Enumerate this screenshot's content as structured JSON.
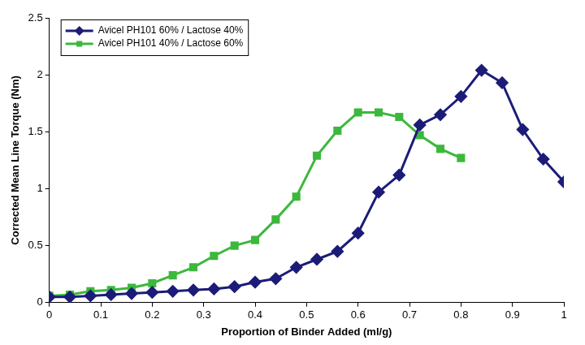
{
  "chart_data": {
    "type": "line",
    "x_label": "Proportion of Binder Added (ml/g)",
    "y_label": "Corrected Mean Line Torque (Nm)",
    "xlim": [
      0,
      1
    ],
    "xticks": [
      0,
      0.1,
      0.2,
      0.3,
      0.4,
      0.5,
      0.6,
      0.7,
      0.8,
      0.9,
      1
    ],
    "ylim": [
      0,
      2.5
    ],
    "yticks": [
      0,
      0.5,
      1,
      1.5,
      2,
      2.5
    ],
    "grid": false,
    "legend": "upper left",
    "series": [
      {
        "name": "Avicel PH101 60% / Lactose 40%",
        "color": "#1c1c78",
        "marker": "diamond",
        "x": [
          0,
          0.04,
          0.08,
          0.12,
          0.16,
          0.2,
          0.24,
          0.28,
          0.32,
          0.36,
          0.4,
          0.44,
          0.48,
          0.52,
          0.56,
          0.6,
          0.64,
          0.68,
          0.72,
          0.76,
          0.8,
          0.84,
          0.88,
          0.92,
          0.96,
          1.0
        ],
        "values": [
          0.05,
          0.05,
          0.06,
          0.07,
          0.08,
          0.09,
          0.1,
          0.11,
          0.12,
          0.14,
          0.18,
          0.21,
          0.31,
          0.38,
          0.45,
          0.61,
          0.97,
          1.12,
          1.56,
          1.65,
          1.81,
          2.04,
          1.93,
          1.52,
          1.26,
          1.06
        ]
      },
      {
        "name": "Avicel PH101 40% / Lactose 60%",
        "color": "#3cb83c",
        "marker": "square",
        "x": [
          0,
          0.04,
          0.08,
          0.12,
          0.16,
          0.2,
          0.24,
          0.28,
          0.32,
          0.36,
          0.4,
          0.44,
          0.48,
          0.52,
          0.56,
          0.6,
          0.64,
          0.68,
          0.72,
          0.76,
          0.8
        ],
        "values": [
          0.06,
          0.07,
          0.1,
          0.11,
          0.13,
          0.17,
          0.24,
          0.31,
          0.41,
          0.5,
          0.55,
          0.73,
          0.93,
          1.29,
          1.51,
          1.67,
          1.67,
          1.63,
          1.47,
          1.35,
          1.27
        ]
      }
    ]
  }
}
